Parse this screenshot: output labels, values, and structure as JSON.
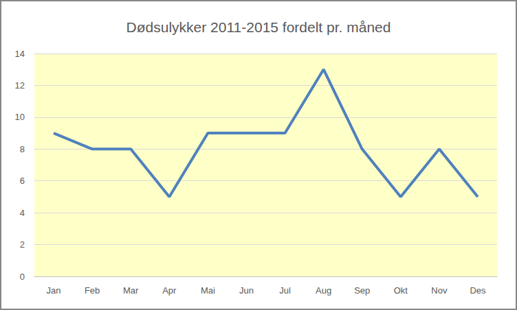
{
  "chart_data": {
    "type": "line",
    "title": "Dødsulykker 2011-2015 fordelt pr. måned",
    "categories": [
      "Jan",
      "Feb",
      "Mar",
      "Apr",
      "Mai",
      "Jun",
      "Jul",
      "Aug",
      "Sep",
      "Okt",
      "Nov",
      "Des"
    ],
    "values": [
      9,
      8,
      8,
      5,
      9,
      9,
      9,
      13,
      8,
      5,
      8,
      5
    ],
    "color": "#4f81bd",
    "ylim": [
      0,
      14
    ],
    "yticks": [
      0,
      2,
      4,
      6,
      8,
      10,
      12,
      14
    ],
    "grid": true
  }
}
